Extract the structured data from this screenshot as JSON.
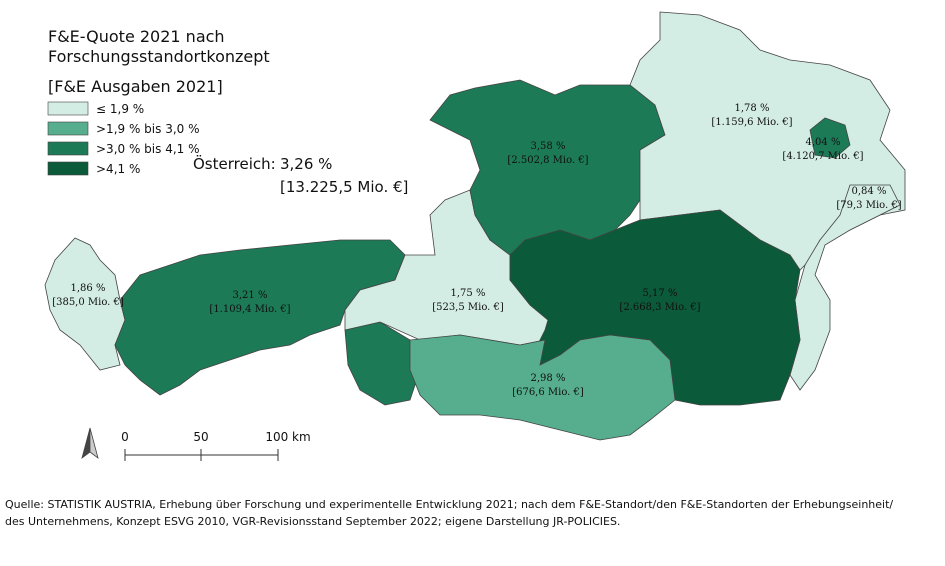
{
  "title": [
    "F&E-Quote 2021 nach",
    "Forschungsstandortkonzept",
    "[F&E Ausgaben 2021]"
  ],
  "legend": [
    {
      "label": "≤ 1,9 %",
      "color": "#d3ece4"
    },
    {
      "label": ">1,9 % bis 3,0 %",
      "color": "#56ae8e"
    },
    {
      "label": ">3,0 % bis 4,1 %",
      "color": "#1c7a57"
    },
    {
      "label": ">4,1 %",
      "color": "#0b5a3a"
    }
  ],
  "austria": {
    "label": "Österreich:",
    "quote": "3,26 %",
    "amount": "[13.225,5 Mio. €]"
  },
  "regions": [
    {
      "quote": "1,86 %",
      "amount": "[385,0 Mio. €]",
      "color": "#d3ece4"
    },
    {
      "quote": "3,21 %",
      "amount": "[1.109,4 Mio. €]",
      "color": "#1c7a57"
    },
    {
      "quote": "1,75 %",
      "amount": "[523,5 Mio. €]",
      "color": "#d3ece4"
    },
    {
      "quote": "3,58 %",
      "amount": "[2.502,8 Mio. €]",
      "color": "#1c7a57"
    },
    {
      "quote": "1,78 %",
      "amount": "[1.159,6 Mio. €]",
      "color": "#d3ece4"
    },
    {
      "quote": "4,04 %",
      "amount": "[4.120,7 Mio. €]",
      "color": "#1c7a57"
    },
    {
      "quote": "0,84 %",
      "amount": "[79,3 Mio. €]",
      "color": "#d3ece4"
    },
    {
      "quote": "5,17 %",
      "amount": "[2.668,3 Mio. €]",
      "color": "#0b5a3a"
    },
    {
      "quote": "2,98 %",
      "amount": "[676,6 Mio. €]",
      "color": "#56ae8e"
    }
  ],
  "scale": [
    "0",
    "50",
    "100 km"
  ],
  "source": [
    "Quelle: STATISTIK AUSTRIA, Erhebung über Forschung und experimentelle Entwicklung 2021; nach dem F&E-Standort/den F&E-Standorten der Erhebungseinheit/",
    "des Unternehmens, Konzept ESVG 2010, VGR-Revisionsstand September 2022; eigene Darstellung JR-POLICIES."
  ]
}
